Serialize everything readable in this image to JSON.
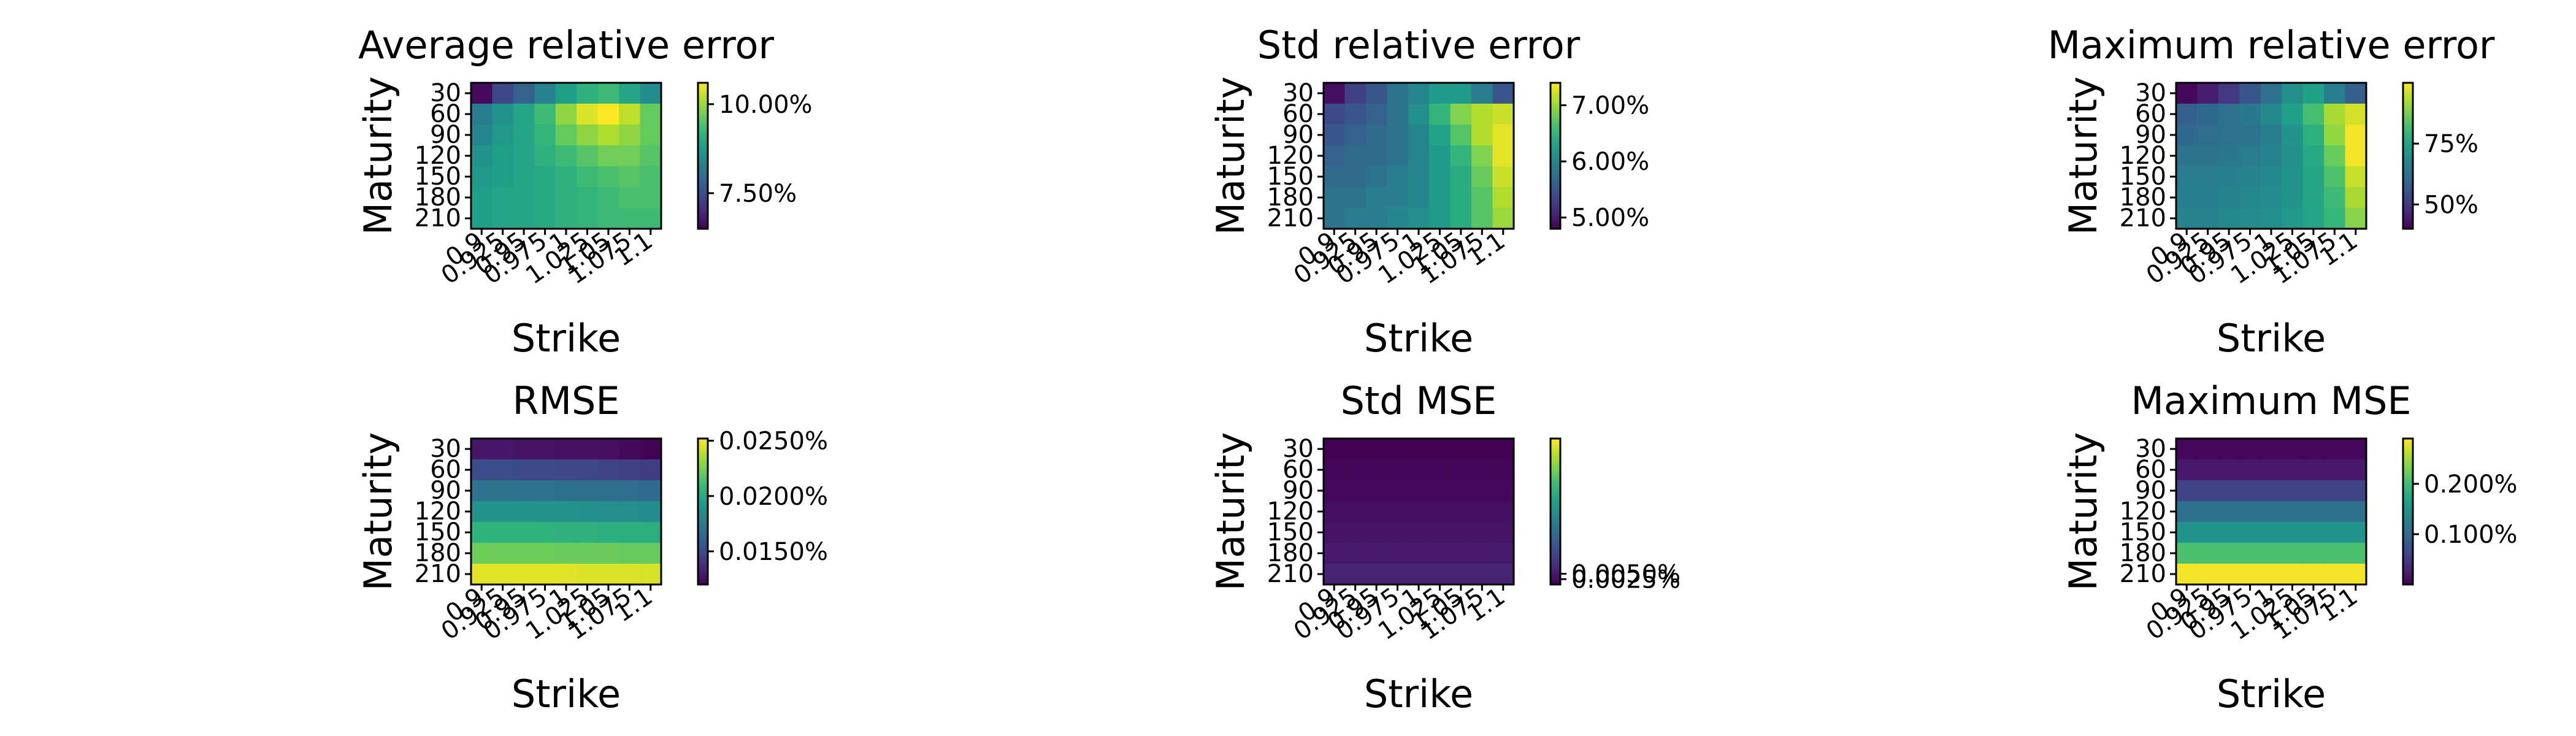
{
  "colormap": [
    "#440154",
    "#482878",
    "#3e4989",
    "#31688e",
    "#26828e",
    "#1f9e89",
    "#35b779",
    "#6ece58",
    "#b5de2b",
    "#fde725"
  ],
  "chart_data": [
    {
      "type": "heatmap",
      "title": "Average relative error",
      "xlabel": "Strike",
      "ylabel": "Maturity",
      "x_tick_labels": [
        "0.9",
        "0.925",
        "0.95",
        "0.975",
        "1",
        "1.025",
        "1.05",
        "1.075",
        "1.1"
      ],
      "y_tick_labels": [
        "30",
        "60",
        "90",
        "120",
        "150",
        "180",
        "210"
      ],
      "colorbar": {
        "min": 0.065,
        "max": 0.106,
        "ticks": [
          {
            "value": 0.075,
            "label": "7.50%"
          },
          {
            "value": 0.1,
            "label": "10.00%"
          }
        ]
      },
      "values": [
        [
          0.066,
          0.074,
          0.078,
          0.083,
          0.088,
          0.091,
          0.093,
          0.089,
          0.085
        ],
        [
          0.082,
          0.086,
          0.089,
          0.093,
          0.099,
          0.104,
          0.106,
          0.102,
          0.096
        ],
        [
          0.084,
          0.087,
          0.089,
          0.092,
          0.096,
          0.099,
          0.101,
          0.099,
          0.096
        ],
        [
          0.086,
          0.088,
          0.089,
          0.091,
          0.093,
          0.095,
          0.097,
          0.097,
          0.095
        ],
        [
          0.087,
          0.088,
          0.089,
          0.09,
          0.091,
          0.093,
          0.094,
          0.095,
          0.094
        ],
        [
          0.088,
          0.089,
          0.089,
          0.09,
          0.091,
          0.092,
          0.093,
          0.094,
          0.094
        ],
        [
          0.088,
          0.089,
          0.089,
          0.09,
          0.091,
          0.092,
          0.093,
          0.093,
          0.093
        ]
      ]
    },
    {
      "type": "heatmap",
      "title": "Std relative error",
      "xlabel": "Strike",
      "ylabel": "Maturity",
      "x_tick_labels": [
        "0.9",
        "0.925",
        "0.95",
        "0.975",
        "1",
        "1.025",
        "1.05",
        "1.075",
        "1.1"
      ],
      "y_tick_labels": [
        "30",
        "60",
        "90",
        "120",
        "150",
        "180",
        "210"
      ],
      "colorbar": {
        "min": 0.048,
        "max": 0.074,
        "ticks": [
          {
            "value": 0.05,
            "label": "5.00%"
          },
          {
            "value": 0.06,
            "label": "6.00%"
          },
          {
            "value": 0.07,
            "label": "7.00%"
          }
        ]
      },
      "values": [
        [
          0.049,
          0.053,
          0.055,
          0.058,
          0.06,
          0.062,
          0.062,
          0.059,
          0.055
        ],
        [
          0.054,
          0.055,
          0.056,
          0.058,
          0.061,
          0.065,
          0.069,
          0.071,
          0.072
        ],
        [
          0.055,
          0.056,
          0.057,
          0.058,
          0.06,
          0.063,
          0.067,
          0.071,
          0.073
        ],
        [
          0.056,
          0.057,
          0.057,
          0.058,
          0.06,
          0.062,
          0.065,
          0.069,
          0.073
        ],
        [
          0.057,
          0.057,
          0.058,
          0.059,
          0.06,
          0.062,
          0.064,
          0.068,
          0.072
        ],
        [
          0.058,
          0.058,
          0.059,
          0.059,
          0.06,
          0.062,
          0.064,
          0.067,
          0.071
        ],
        [
          0.058,
          0.059,
          0.059,
          0.06,
          0.061,
          0.062,
          0.064,
          0.067,
          0.07
        ]
      ]
    },
    {
      "type": "heatmap",
      "title": "Maximum relative error",
      "xlabel": "Strike",
      "ylabel": "Maturity",
      "x_tick_labels": [
        "0.9",
        "0.925",
        "0.95",
        "0.975",
        "1",
        "1.025",
        "1.05",
        "1.075",
        "1.1"
      ],
      "y_tick_labels": [
        "30",
        "60",
        "90",
        "120",
        "150",
        "180",
        "210"
      ],
      "colorbar": {
        "min": 0.4,
        "max": 1.0,
        "ticks": [
          {
            "value": 0.5,
            "label": "50%"
          },
          {
            "value": 0.75,
            "label": "75%"
          }
        ]
      },
      "values": [
        [
          0.41,
          0.45,
          0.5,
          0.56,
          0.62,
          0.7,
          0.74,
          0.66,
          0.58
        ],
        [
          0.58,
          0.6,
          0.62,
          0.64,
          0.68,
          0.74,
          0.82,
          0.92,
          0.96
        ],
        [
          0.6,
          0.61,
          0.62,
          0.63,
          0.66,
          0.71,
          0.78,
          0.9,
          0.99
        ],
        [
          0.63,
          0.63,
          0.64,
          0.65,
          0.67,
          0.7,
          0.76,
          0.86,
          0.99
        ],
        [
          0.65,
          0.65,
          0.66,
          0.67,
          0.68,
          0.71,
          0.75,
          0.83,
          0.95
        ],
        [
          0.66,
          0.66,
          0.67,
          0.68,
          0.69,
          0.71,
          0.75,
          0.81,
          0.92
        ],
        [
          0.67,
          0.67,
          0.68,
          0.69,
          0.7,
          0.72,
          0.75,
          0.8,
          0.89
        ]
      ]
    },
    {
      "type": "heatmap",
      "title": "RMSE",
      "xlabel": "Strike",
      "ylabel": "Maturity",
      "x_tick_labels": [
        "0.9",
        "0.925",
        "0.95",
        "0.975",
        "1",
        "1.025",
        "1.05",
        "1.075",
        "1.1"
      ],
      "y_tick_labels": [
        "30",
        "60",
        "90",
        "120",
        "150",
        "180",
        "210"
      ],
      "colorbar": {
        "min": 0.00012,
        "max": 0.000252,
        "ticks": [
          {
            "value": 0.00015,
            "label": "0.0150%"
          },
          {
            "value": 0.0002,
            "label": "0.0200%"
          },
          {
            "value": 0.00025,
            "label": "0.0250%"
          }
        ]
      },
      "values": [
        [
          0.000128,
          0.000128,
          0.000127,
          0.000127,
          0.000126,
          0.000126,
          0.000125,
          0.000123,
          0.000121
        ],
        [
          0.000151,
          0.000151,
          0.00015,
          0.00015,
          0.000149,
          0.000148,
          0.000147,
          0.000146,
          0.000144
        ],
        [
          0.00017,
          0.00017,
          0.000169,
          0.000169,
          0.000168,
          0.000167,
          0.000167,
          0.000166,
          0.000165
        ],
        [
          0.000188,
          0.000188,
          0.000188,
          0.000187,
          0.000187,
          0.000186,
          0.000185,
          0.000185,
          0.000184
        ],
        [
          0.000205,
          0.000205,
          0.000205,
          0.000205,
          0.000204,
          0.000204,
          0.000203,
          0.000203,
          0.000202
        ],
        [
          0.000222,
          0.000222,
          0.000222,
          0.000222,
          0.000221,
          0.000221,
          0.000221,
          0.00022,
          0.00022
        ],
        [
          0.000246,
          0.000246,
          0.000246,
          0.000246,
          0.000246,
          0.000245,
          0.000245,
          0.000245,
          0.000244
        ]
      ]
    },
    {
      "type": "heatmap",
      "title": "Std MSE",
      "xlabel": "Strike",
      "ylabel": "Maturity",
      "x_tick_labels": [
        "0.9",
        "0.925",
        "0.95",
        "0.975",
        "1",
        "1.025",
        "1.05",
        "1.075",
        "1.1"
      ],
      "y_tick_labels": [
        "30",
        "60",
        "90",
        "120",
        "150",
        "180",
        "210"
      ],
      "colorbar": {
        "min": 0.0,
        "max": 0.00068,
        "ticks": [
          {
            "value": 2.5e-05,
            "label": "0.0025%"
          },
          {
            "value": 5e-05,
            "label": "0.0050%"
          }
        ]
      },
      "values": [
        [
          1e-06,
          1e-06,
          1e-06,
          1e-06,
          1e-06,
          1e-06,
          1e-06,
          1e-06,
          1e-06
        ],
        [
          6e-06,
          6e-06,
          6e-06,
          6e-06,
          6e-06,
          6e-06,
          6e-06,
          6e-06,
          6e-06
        ],
        [
          1.4e-05,
          1.4e-05,
          1.4e-05,
          1.4e-05,
          1.4e-05,
          1.4e-05,
          1.4e-05,
          1.4e-05,
          1.4e-05
        ],
        [
          2.5e-05,
          2.5e-05,
          2.5e-05,
          2.5e-05,
          2.5e-05,
          2.5e-05,
          2.5e-05,
          2.5e-05,
          2.5e-05
        ],
        [
          3.6e-05,
          3.6e-05,
          3.6e-05,
          3.6e-05,
          3.6e-05,
          3.6e-05,
          3.6e-05,
          3.6e-05,
          3.6e-05
        ],
        [
          4.8e-05,
          4.8e-05,
          4.8e-05,
          4.8e-05,
          4.8e-05,
          4.8e-05,
          4.8e-05,
          4.8e-05,
          4.8e-05
        ],
        [
          6.6e-05,
          6.6e-05,
          6.6e-05,
          6.6e-05,
          6.6e-05,
          6.6e-05,
          6.6e-05,
          6.6e-05,
          6.6e-05
        ]
      ]
    },
    {
      "type": "heatmap",
      "title": "Maximum MSE",
      "xlabel": "Strike",
      "ylabel": "Maturity",
      "x_tick_labels": [
        "0.9",
        "0.925",
        "0.95",
        "0.975",
        "1",
        "1.025",
        "1.05",
        "1.075",
        "1.1"
      ],
      "y_tick_labels": [
        "30",
        "60",
        "90",
        "120",
        "150",
        "180",
        "210"
      ],
      "colorbar": {
        "min": 0.0,
        "max": 0.0029,
        "ticks": [
          {
            "value": 0.001,
            "label": "0.100%"
          },
          {
            "value": 0.002,
            "label": "0.200%"
          }
        ]
      },
      "values": [
        [
          5e-05,
          5e-05,
          5e-05,
          5e-05,
          5e-05,
          5e-05,
          5e-05,
          5e-05,
          5e-05
        ],
        [
          0.0002,
          0.0002,
          0.0002,
          0.0002,
          0.0002,
          0.0002,
          0.0002,
          0.0002,
          0.0002
        ],
        [
          0.0006,
          0.0006,
          0.0006,
          0.0006,
          0.0006,
          0.0006,
          0.0006,
          0.0006,
          0.0006
        ],
        [
          0.00105,
          0.00105,
          0.00105,
          0.00105,
          0.00105,
          0.00105,
          0.00105,
          0.00105,
          0.00105
        ],
        [
          0.0015,
          0.0015,
          0.0015,
          0.0015,
          0.0015,
          0.0015,
          0.0015,
          0.0015,
          0.0015
        ],
        [
          0.00205,
          0.00205,
          0.00205,
          0.00205,
          0.00205,
          0.00205,
          0.00205,
          0.00205,
          0.00205
        ],
        [
          0.00285,
          0.00285,
          0.00285,
          0.00285,
          0.00285,
          0.00285,
          0.00285,
          0.00285,
          0.00285
        ]
      ]
    }
  ]
}
